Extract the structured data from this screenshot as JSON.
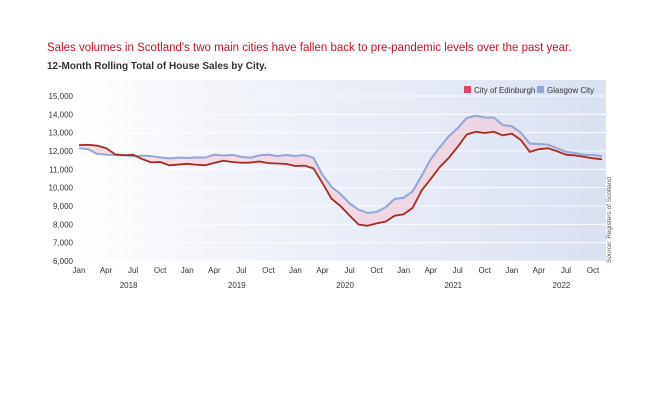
{
  "title": "Sales volumes in Scotland's two main cities have fallen back to pre-pandemic levels over the past year.",
  "subtitle": "12-Month Rolling Total of House Sales by City.",
  "source": "Source: Registers of Scotland",
  "colors": {
    "edinburgh": "#a52a1f",
    "edinburgh_fill": "#e04468",
    "glasgow": "#8fa8d8",
    "gap_fill": "#f7c5d4"
  },
  "chart_data": {
    "type": "line",
    "title": "Sales volumes in Scotland's two main cities have fallen back to pre-pandemic levels over the past year.",
    "subtitle": "12-Month Rolling Total of House Sales by City.",
    "xlabel": "",
    "ylabel": "",
    "ylim": [
      6000,
      15000
    ],
    "y_ticks": [
      6000,
      7000,
      8000,
      9000,
      10000,
      11000,
      12000,
      13000,
      14000,
      15000
    ],
    "y_tick_labels": [
      "6,000",
      "7,000",
      "8,000",
      "9,000",
      "10,000",
      "11,000",
      "12,000",
      "13,000",
      "14,000",
      "15,000"
    ],
    "x_ticks": [
      {
        "i": 0,
        "label": "Jan"
      },
      {
        "i": 3,
        "label": "Apr"
      },
      {
        "i": 6,
        "label": "Jul"
      },
      {
        "i": 9,
        "label": "Oct"
      },
      {
        "i": 12,
        "label": "Jan"
      },
      {
        "i": 15,
        "label": "Apr"
      },
      {
        "i": 18,
        "label": "Jul"
      },
      {
        "i": 21,
        "label": "Oct"
      },
      {
        "i": 24,
        "label": "Jan"
      },
      {
        "i": 27,
        "label": "Apr"
      },
      {
        "i": 30,
        "label": "Jul"
      },
      {
        "i": 33,
        "label": "Oct"
      },
      {
        "i": 36,
        "label": "Jan"
      },
      {
        "i": 39,
        "label": "Apr"
      },
      {
        "i": 42,
        "label": "Jul"
      },
      {
        "i": 45,
        "label": "Oct"
      },
      {
        "i": 48,
        "label": "Jan"
      },
      {
        "i": 51,
        "label": "Apr"
      },
      {
        "i": 54,
        "label": "Jul"
      },
      {
        "i": 57,
        "label": "Oct"
      }
    ],
    "years": [
      {
        "label": "2018",
        "center": 5.5
      },
      {
        "label": "2019",
        "center": 17.5
      },
      {
        "label": "2020",
        "center": 29.5
      },
      {
        "label": "2021",
        "center": 41.5
      },
      {
        "label": "2022",
        "center": 53.5
      }
    ],
    "legend_position": "top-right",
    "grid": "horizontal",
    "series": [
      {
        "name": "City of Edinburgh",
        "values": [
          12320,
          12340,
          12290,
          12160,
          11820,
          11760,
          11800,
          11560,
          11380,
          11400,
          11220,
          11260,
          11300,
          11250,
          11220,
          11350,
          11470,
          11400,
          11360,
          11370,
          11430,
          11340,
          11320,
          11290,
          11180,
          11200,
          11050,
          10250,
          9400,
          9000,
          8480,
          7990,
          7920,
          8050,
          8150,
          8470,
          8550,
          8900,
          9850,
          10470,
          11120,
          11620,
          12230,
          12900,
          13050,
          12980,
          13050,
          12850,
          12950,
          12600,
          11950,
          12100,
          12150,
          11990,
          11800,
          11760,
          11680,
          11600,
          11550
        ]
      },
      {
        "name": "Glasgow City",
        "values": [
          12150,
          12100,
          11840,
          11800,
          11780,
          11780,
          11710,
          11750,
          11720,
          11650,
          11600,
          11640,
          11620,
          11650,
          11640,
          11800,
          11750,
          11790,
          11680,
          11630,
          11760,
          11800,
          11720,
          11780,
          11720,
          11780,
          11630,
          10700,
          10050,
          9650,
          9150,
          8800,
          8620,
          8680,
          8930,
          9380,
          9450,
          9800,
          10650,
          11550,
          12200,
          12800,
          13250,
          13800,
          13930,
          13830,
          13820,
          13420,
          13350,
          13000,
          12400,
          12380,
          12350,
          12150,
          11960,
          11900,
          11780,
          11780,
          11720
        ]
      }
    ]
  }
}
